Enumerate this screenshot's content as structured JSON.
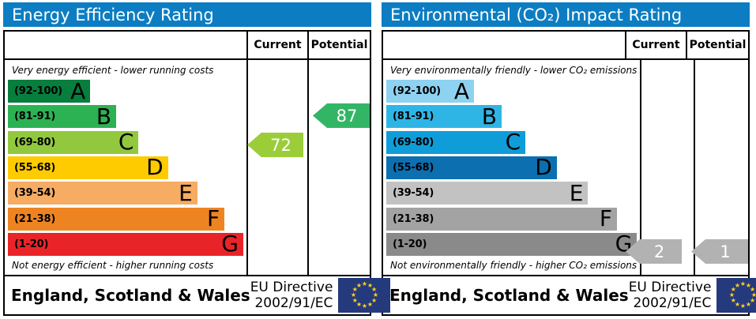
{
  "panels": [
    {
      "title": "Energy Efficiency Rating",
      "header_color": "#0c7dc2",
      "columns": {
        "current": "Current",
        "potential": "Potential"
      },
      "caption_top": "Very energy efficient - lower running costs",
      "caption_bottom": "Not energy efficient - higher running costs",
      "bands": [
        {
          "range": "(92-100)",
          "letter": "A",
          "color": "#077e3d"
        },
        {
          "range": "(81-91)",
          "letter": "B",
          "color": "#2db253"
        },
        {
          "range": "(69-80)",
          "letter": "C",
          "color": "#92c83e"
        },
        {
          "range": "(55-68)",
          "letter": "D",
          "color": "#fecb00"
        },
        {
          "range": "(39-54)",
          "letter": "E",
          "color": "#f6ac62"
        },
        {
          "range": "(21-38)",
          "letter": "F",
          "color": "#ee8421"
        },
        {
          "range": "(1-20)",
          "letter": "G",
          "color": "#e92429"
        }
      ],
      "current": {
        "value": "72",
        "band": "C",
        "color": "#9bcd39"
      },
      "potential": {
        "value": "87",
        "band": "B",
        "color": "#33b566"
      },
      "footer": {
        "region": "England, Scotland & Wales",
        "directive_line1": "EU Directive",
        "directive_line2": "2002/91/EC",
        "flag": "eu-flag",
        "flag_blue": "#25397d",
        "star_color": "#ffd21c"
      }
    },
    {
      "title": "Environmental (CO₂) Impact Rating",
      "header_color": "#0c7dc2",
      "columns": {
        "current": "Current",
        "potential": "Potential"
      },
      "caption_top": "Very environmentally friendly - lower CO₂ emissions",
      "caption_bottom": "Not environmentally friendly - higher CO₂ emissions",
      "bands": [
        {
          "range": "(92-100)",
          "letter": "A",
          "color": "#8ed2f1"
        },
        {
          "range": "(81-91)",
          "letter": "B",
          "color": "#2fb5e5"
        },
        {
          "range": "(69-80)",
          "letter": "C",
          "color": "#0f9dd9"
        },
        {
          "range": "(55-68)",
          "letter": "D",
          "color": "#0c6fb0"
        },
        {
          "range": "(39-54)",
          "letter": "E",
          "color": "#c2c2c2"
        },
        {
          "range": "(21-38)",
          "letter": "F",
          "color": "#a3a3a3"
        },
        {
          "range": "(1-20)",
          "letter": "G",
          "color": "#8a8a8a"
        }
      ],
      "current": {
        "value": "2",
        "band": "G",
        "color": "#b2b2b2"
      },
      "potential": {
        "value": "1",
        "band": "G",
        "color": "#b2b2b2"
      },
      "footer": {
        "region": "England, Scotland & Wales",
        "directive_line1": "EU Directive",
        "directive_line2": "2002/91/EC",
        "flag": "eu-flag",
        "flag_blue": "#25397d",
        "star_color": "#ffd21c"
      }
    }
  ],
  "chart_data": [
    {
      "type": "bar",
      "title": "Energy Efficiency Rating",
      "orientation": "horizontal",
      "categories": [
        "A (92-100)",
        "B (81-91)",
        "C (69-80)",
        "D (55-68)",
        "E (39-54)",
        "F (21-38)",
        "G (1-20)"
      ],
      "band_upper_bounds": [
        100,
        91,
        80,
        68,
        54,
        38,
        20
      ],
      "band_colors": [
        "#077e3d",
        "#2db253",
        "#92c83e",
        "#fecb00",
        "#f6ac62",
        "#ee8421",
        "#e92429"
      ],
      "markers": {
        "current": 72,
        "current_band": "C",
        "potential": 87,
        "potential_band": "B"
      },
      "top_note": "Very energy efficient - lower running costs",
      "bottom_note": "Not energy efficient - higher running costs",
      "footer": "England, Scotland & Wales — EU Directive 2002/91/EC"
    },
    {
      "type": "bar",
      "title": "Environmental (CO₂) Impact Rating",
      "orientation": "horizontal",
      "categories": [
        "A (92-100)",
        "B (81-91)",
        "C (69-80)",
        "D (55-68)",
        "E (39-54)",
        "F (21-38)",
        "G (1-20)"
      ],
      "band_upper_bounds": [
        100,
        91,
        80,
        68,
        54,
        38,
        20
      ],
      "band_colors": [
        "#8ed2f1",
        "#2fb5e5",
        "#0f9dd9",
        "#0c6fb0",
        "#c2c2c2",
        "#a3a3a3",
        "#8a8a8a"
      ],
      "markers": {
        "current": 2,
        "current_band": "G",
        "potential": 1,
        "potential_band": "G"
      },
      "top_note": "Very environmentally friendly - lower CO₂ emissions",
      "bottom_note": "Not environmentally friendly - higher CO₂ emissions",
      "footer": "England, Scotland & Wales — EU Directive 2002/91/EC"
    }
  ]
}
